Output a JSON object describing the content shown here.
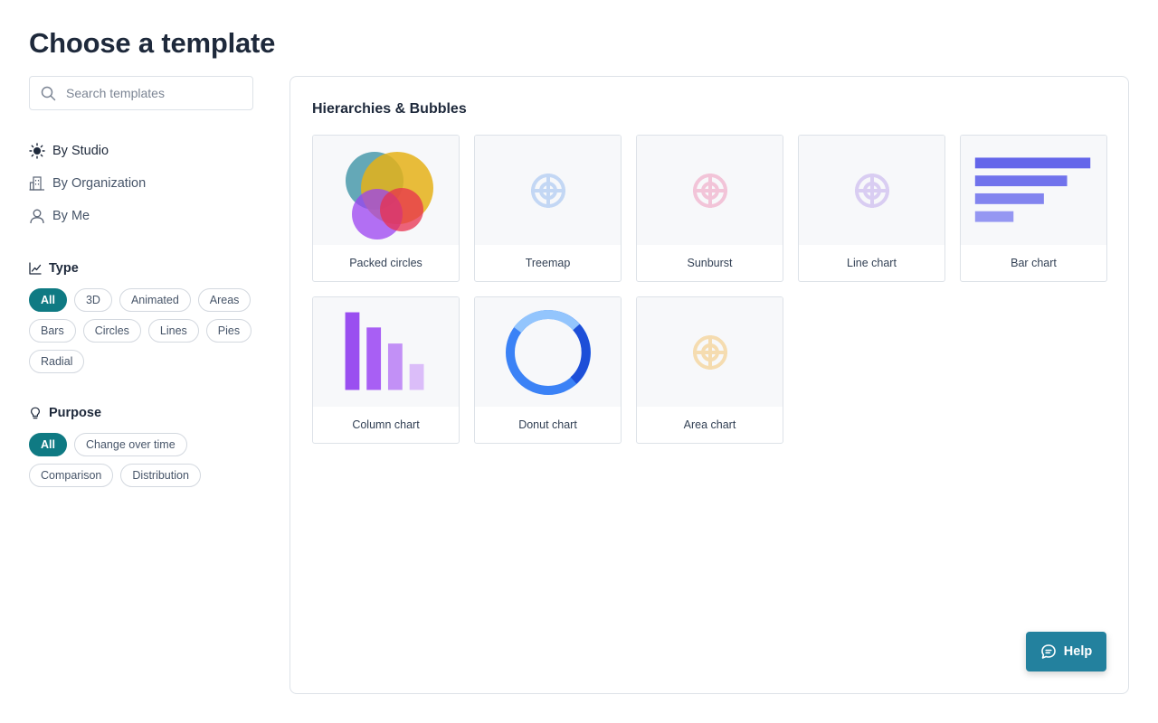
{
  "page": {
    "title": "Choose a template"
  },
  "search": {
    "placeholder": "Search templates",
    "value": ""
  },
  "nav": [
    {
      "label": "By Studio",
      "icon": "sun-icon",
      "active": true
    },
    {
      "label": "By Organization",
      "icon": "building-icon",
      "active": false
    },
    {
      "label": "By Me",
      "icon": "user-icon",
      "active": false
    }
  ],
  "type_filter": {
    "heading": "Type",
    "options": [
      "All",
      "3D",
      "Animated",
      "Areas",
      "Bars",
      "Circles",
      "Lines",
      "Pies",
      "Radial"
    ],
    "selected": "All"
  },
  "purpose_filter": {
    "heading": "Purpose",
    "options": [
      "All",
      "Change over time",
      "Comparison",
      "Distribution"
    ],
    "selected": "All"
  },
  "main": {
    "section_title": "Hierarchies & Bubbles",
    "templates": [
      {
        "label": "Packed circles",
        "thumb": "packed-circles"
      },
      {
        "label": "Treemap",
        "thumb": "placeholder",
        "color": "#c3d7f4"
      },
      {
        "label": "Sunburst",
        "thumb": "placeholder",
        "color": "#f2c4d8"
      },
      {
        "label": "Line chart",
        "thumb": "placeholder",
        "color": "#d9cdf2"
      },
      {
        "label": "Bar chart",
        "thumb": "bar-chart"
      },
      {
        "label": "Column chart",
        "thumb": "column-chart"
      },
      {
        "label": "Donut chart",
        "thumb": "donut-chart"
      },
      {
        "label": "Area chart",
        "thumb": "placeholder",
        "color": "#f5dcb0"
      }
    ]
  },
  "help": {
    "label": "Help"
  },
  "colors": {
    "accent": "#0f7a83",
    "help": "#23819e"
  }
}
